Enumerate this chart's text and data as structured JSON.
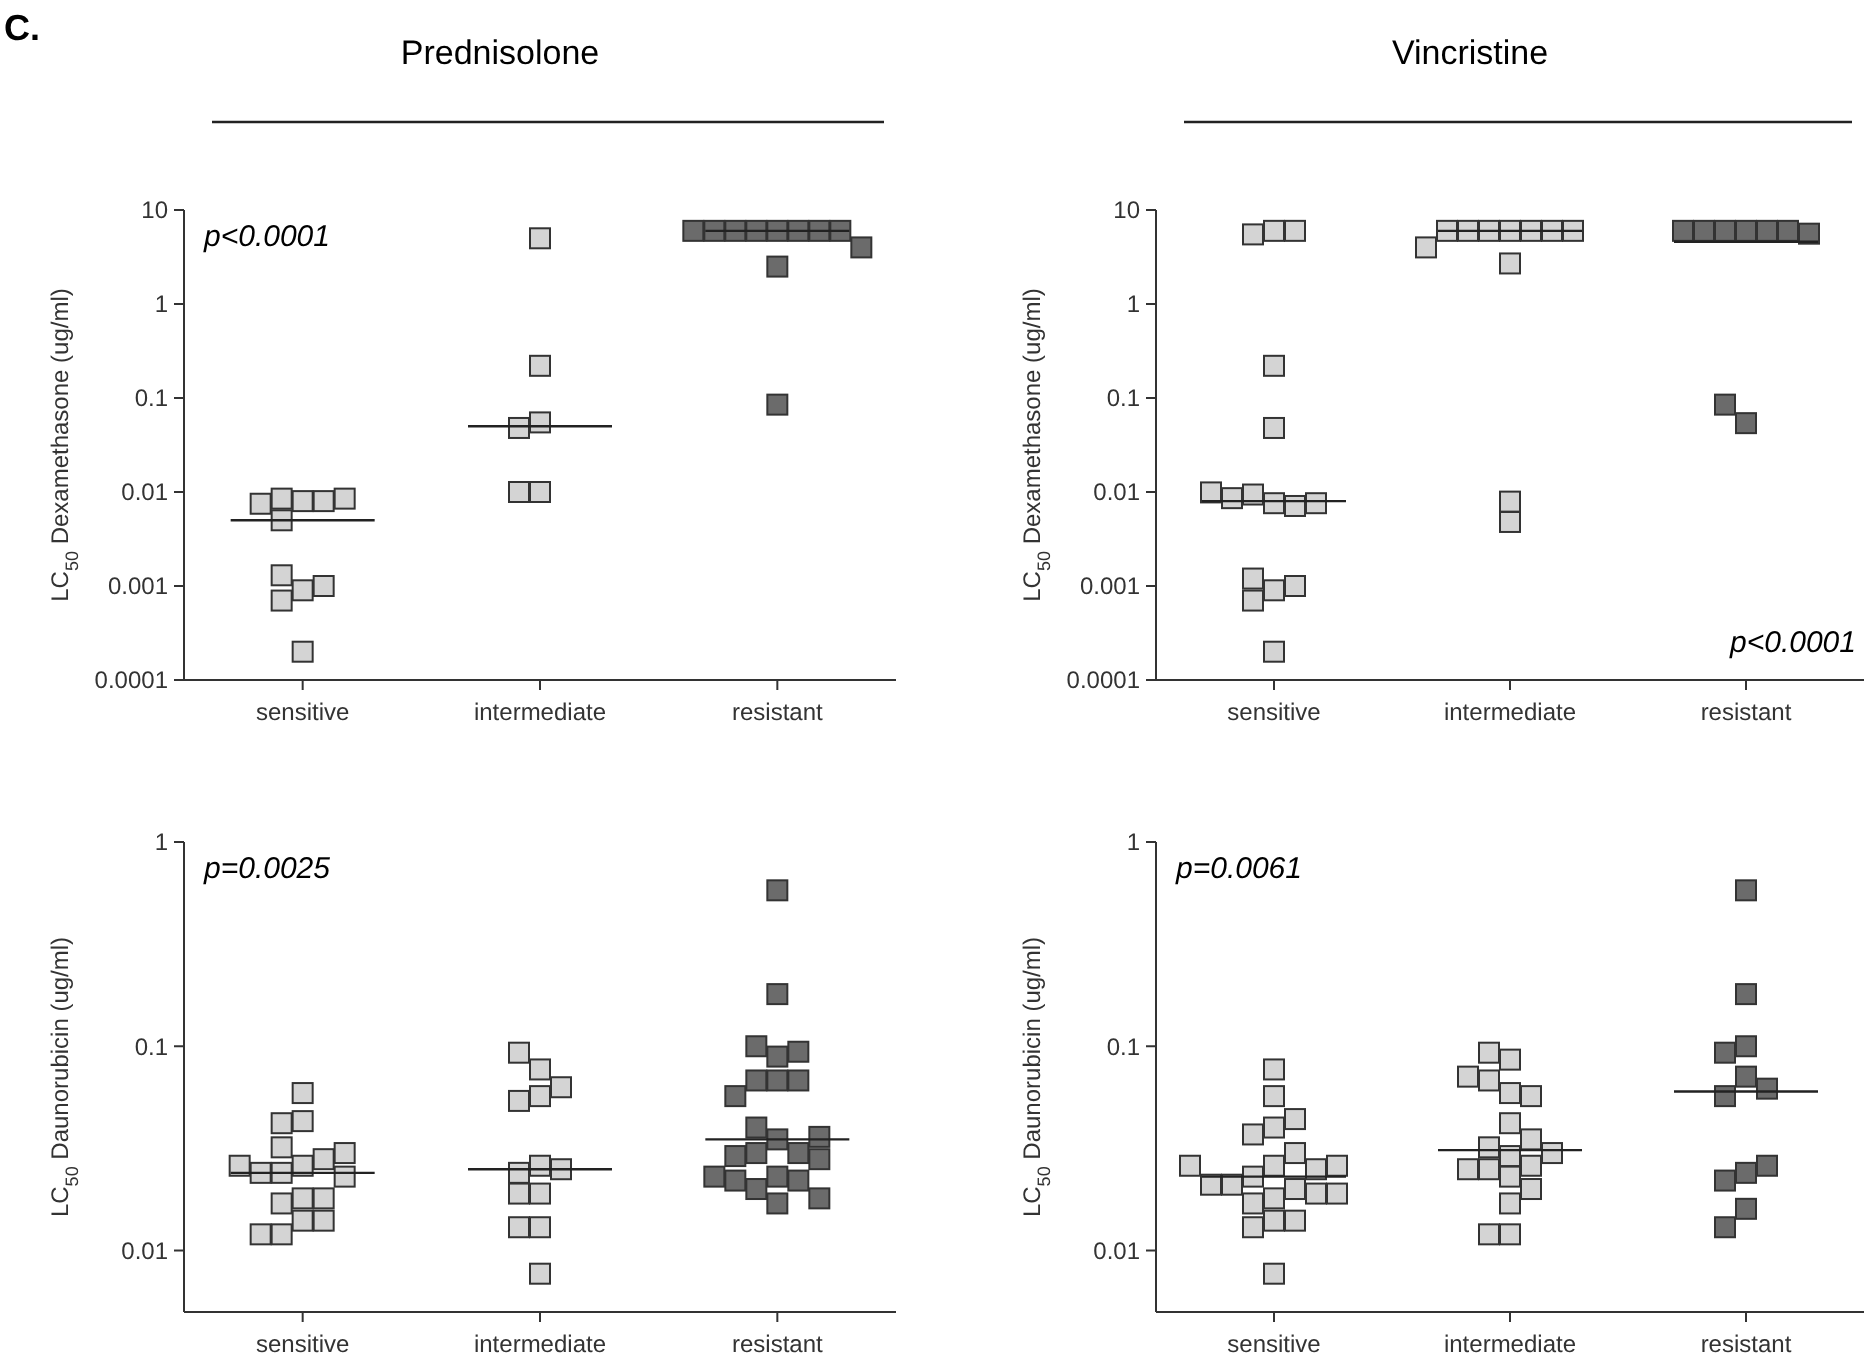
{
  "chart_data": [
    {
      "type": "scatter",
      "title": "Prednisolone",
      "ylabel": "LC$_{50}$ Dexamethasone (ug/ml)",
      "categories": [
        "sensitive",
        "intermediate",
        "resistant"
      ],
      "log": "y",
      "ylim": [
        0.0001,
        10
      ],
      "yticks": [
        0.0001,
        0.001,
        0.01,
        0.1,
        1,
        10
      ],
      "marker": "square",
      "annotations": [
        "C.",
        "p<0.0001"
      ],
      "series": [
        {
          "type": "scatter",
          "color": "#d4d4d4",
          "x": [
            "sensitive",
            "sensitive",
            "sensitive",
            "sensitive",
            "sensitive",
            "sensitive",
            "sensitive",
            "sensitive",
            "sensitive",
            "sensitive",
            "sensitive"
          ],
          "values": [
            0.008,
            0.0085,
            0.008,
            0.0075,
            0.0085,
            0.005,
            0.0009,
            0.0013,
            0.0007,
            0.001,
            0.0002
          ]
        },
        {
          "type": "scatter",
          "color": "#d4d4d4",
          "x": [
            "intermediate",
            "intermediate",
            "intermediate",
            "intermediate",
            "intermediate",
            "intermediate"
          ],
          "values": [
            5,
            0.22,
            0.055,
            0.048,
            0.01,
            0.01
          ]
        },
        {
          "type": "scatter",
          "color": "#6b6b6b",
          "x": [
            "resistant",
            "resistant",
            "resistant",
            "resistant",
            "resistant",
            "resistant",
            "resistant",
            "resistant",
            "resistant",
            "resistant",
            "resistant"
          ],
          "values": [
            6,
            6,
            6,
            6,
            6,
            6,
            6,
            6,
            4,
            2.5,
            0.085
          ]
        },
        {
          "type": "box",
          "color": "#222222",
          "boxes": [
            {
              "low": 0.005,
              "q1": 0.005,
              "median": 0.005,
              "q3": 0.005,
              "high": 0.005
            },
            {
              "low": 0.05,
              "q1": 0.05,
              "median": 0.05,
              "q3": 0.05,
              "high": 0.05
            },
            {
              "low": 6,
              "q1": 6,
              "median": 6,
              "q3": 6,
              "high": 6
            }
          ]
        }
      ]
    },
    {
      "type": "scatter",
      "title": "Vincristine",
      "ylabel": "LC$_{50}$ Dexamethasone (ug/ml)",
      "categories": [
        "sensitive",
        "intermediate",
        "resistant"
      ],
      "log": "y",
      "ylim": [
        0.0001,
        10
      ],
      "yticks": [
        0.0001,
        0.001,
        0.01,
        0.1,
        1,
        10
      ],
      "marker": "square",
      "annotations": [
        "p<0.0001"
      ],
      "series": [
        {
          "type": "scatter",
          "color": "#d4d4d4",
          "x": [
            "sensitive",
            "sensitive",
            "sensitive",
            "sensitive",
            "sensitive",
            "sensitive",
            "sensitive",
            "sensitive",
            "sensitive",
            "sensitive",
            "sensitive",
            "sensitive",
            "sensitive",
            "sensitive",
            "sensitive",
            "sensitive"
          ],
          "values": [
            6,
            5.5,
            6,
            0.22,
            0.048,
            0.0076,
            0.0094,
            0.0071,
            0.0086,
            0.0076,
            0.0099,
            0.0009,
            0.0012,
            0.0007,
            0.001,
            0.0002
          ]
        },
        {
          "type": "scatter",
          "color": "#d4d4d4",
          "x": [
            "intermediate",
            "intermediate",
            "intermediate",
            "intermediate",
            "intermediate",
            "intermediate",
            "intermediate",
            "intermediate",
            "intermediate",
            "intermediate",
            "intermediate"
          ],
          "values": [
            6,
            6,
            6,
            6,
            6,
            6,
            6,
            4,
            2.7,
            0.0048,
            0.0079
          ]
        },
        {
          "type": "scatter",
          "color": "#6b6b6b",
          "x": [
            "resistant",
            "resistant",
            "resistant",
            "resistant",
            "resistant",
            "resistant",
            "resistant",
            "resistant",
            "resistant"
          ],
          "values": [
            6,
            6,
            6,
            6,
            6,
            6,
            5.6,
            0.054,
            0.085
          ]
        },
        {
          "type": "box",
          "color": "#222222",
          "boxes": [
            {
              "low": 0.008,
              "q1": 0.008,
              "median": 0.008,
              "q3": 0.008,
              "high": 0.008
            },
            {
              "low": 6,
              "q1": 6,
              "median": 6,
              "q3": 6,
              "high": 6
            },
            {
              "low": 4.6,
              "q1": 4.6,
              "median": 4.6,
              "q3": 4.6,
              "high": 4.6
            }
          ]
        }
      ]
    },
    {
      "type": "scatter",
      "ylabel": "LC$_{50}$ Daunorubicin (ug/ml)",
      "categories": [
        "sensitive",
        "intermediate",
        "resistant"
      ],
      "log": "y",
      "ylim": [
        0.005,
        1
      ],
      "yticks": [
        0.01,
        0.1,
        1
      ],
      "marker": "square",
      "annotations": [
        "p=0.0025"
      ],
      "series": [
        {
          "type": "scatter",
          "color": "#d4d4d4",
          "x": [
            "sensitive",
            "sensitive",
            "sensitive",
            "sensitive",
            "sensitive",
            "sensitive",
            "sensitive",
            "sensitive",
            "sensitive",
            "sensitive",
            "sensitive",
            "sensitive",
            "sensitive",
            "sensitive",
            "sensitive",
            "sensitive",
            "sensitive",
            "sensitive"
          ],
          "values": [
            0.026,
            0.043,
            0.032,
            0.018,
            0.014,
            0.024,
            0.017,
            0.042,
            0.028,
            0.018,
            0.012,
            0.024,
            0.014,
            0.059,
            0.03,
            0.023,
            0.012,
            0.026
          ]
        },
        {
          "type": "scatter",
          "color": "#d4d4d4",
          "x": [
            "intermediate",
            "intermediate",
            "intermediate",
            "intermediate",
            "intermediate",
            "intermediate",
            "intermediate",
            "intermediate",
            "intermediate",
            "intermediate",
            "intermediate",
            "intermediate",
            "intermediate"
          ],
          "values": [
            0.057,
            0.026,
            0.013,
            0.077,
            0.019,
            0.093,
            0.054,
            0.024,
            0.013,
            0.0077,
            0.063,
            0.025,
            0.019
          ]
        },
        {
          "type": "scatter",
          "color": "#6b6b6b",
          "x": [
            "resistant",
            "resistant",
            "resistant",
            "resistant",
            "resistant",
            "resistant",
            "resistant",
            "resistant",
            "resistant",
            "resistant",
            "resistant",
            "resistant",
            "resistant",
            "resistant",
            "resistant",
            "resistant",
            "resistant",
            "resistant",
            "resistant",
            "resistant",
            "resistant",
            "resistant",
            "resistant"
          ],
          "values": [
            0.58,
            0.18,
            0.068,
            0.089,
            0.1,
            0.094,
            0.068,
            0.068,
            0.057,
            0.035,
            0.03,
            0.023,
            0.04,
            0.03,
            0.029,
            0.028,
            0.036,
            0.02,
            0.022,
            0.017,
            0.022,
            0.018,
            0.023
          ]
        },
        {
          "type": "box",
          "color": "#222222",
          "boxes": [
            {
              "low": 0.024,
              "q1": 0.024,
              "median": 0.024,
              "q3": 0.024,
              "high": 0.024
            },
            {
              "low": 0.025,
              "q1": 0.025,
              "median": 0.025,
              "q3": 0.025,
              "high": 0.025
            },
            {
              "low": 0.035,
              "q1": 0.035,
              "median": 0.035,
              "q3": 0.035,
              "high": 0.035
            }
          ]
        }
      ]
    },
    {
      "type": "scatter",
      "ylabel": "LC$_{50}$ Daunorubicin (ug/ml)",
      "categories": [
        "sensitive",
        "intermediate",
        "resistant"
      ],
      "log": "y",
      "ylim": [
        0.005,
        1
      ],
      "yticks": [
        0.01,
        0.1,
        1
      ],
      "marker": "square",
      "annotations": [
        "p=0.0061"
      ],
      "series": [
        {
          "type": "scatter",
          "color": "#d4d4d4",
          "x": [
            "sensitive",
            "sensitive",
            "sensitive",
            "sensitive",
            "sensitive",
            "sensitive",
            "sensitive",
            "sensitive",
            "sensitive",
            "sensitive",
            "sensitive",
            "sensitive",
            "sensitive",
            "sensitive",
            "sensitive",
            "sensitive",
            "sensitive",
            "sensitive",
            "sensitive",
            "sensitive",
            "sensitive",
            "sensitive"
          ],
          "values": [
            0.026,
            0.018,
            0.04,
            0.023,
            0.014,
            0.02,
            0.017,
            0.057,
            0.037,
            0.03,
            0.021,
            0.013,
            0.0077,
            0.025,
            0.019,
            0.077,
            0.044,
            0.021,
            0.014,
            0.026,
            0.019,
            0.026
          ]
        },
        {
          "type": "scatter",
          "color": "#d4d4d4",
          "x": [
            "intermediate",
            "intermediate",
            "intermediate",
            "intermediate",
            "intermediate",
            "intermediate",
            "intermediate",
            "intermediate",
            "intermediate",
            "intermediate",
            "intermediate",
            "intermediate",
            "intermediate",
            "intermediate",
            "intermediate",
            "intermediate",
            "intermediate",
            "intermediate",
            "intermediate"
          ],
          "values": [
            0.029,
            0.059,
            0.042,
            0.023,
            0.017,
            0.068,
            0.086,
            0.057,
            0.032,
            0.025,
            0.02,
            0.012,
            0.026,
            0.093,
            0.071,
            0.035,
            0.025,
            0.012,
            0.03
          ]
        },
        {
          "type": "scatter",
          "color": "#6b6b6b",
          "x": [
            "resistant",
            "resistant",
            "resistant",
            "resistant",
            "resistant",
            "resistant",
            "resistant",
            "resistant",
            "resistant",
            "resistant",
            "resistant",
            "resistant"
          ],
          "values": [
            0.58,
            0.18,
            0.1,
            0.093,
            0.071,
            0.057,
            0.062,
            0.024,
            0.022,
            0.026,
            0.016,
            0.013
          ]
        },
        {
          "type": "box",
          "color": "#222222",
          "boxes": [
            {
              "low": 0.023,
              "q1": 0.023,
              "median": 0.023,
              "q3": 0.023,
              "high": 0.023
            },
            {
              "low": 0.031,
              "q1": 0.031,
              "median": 0.031,
              "q3": 0.031,
              "high": 0.031
            },
            {
              "low": 0.06,
              "q1": 0.06,
              "median": 0.06,
              "q3": 0.06,
              "high": 0.06
            }
          ]
        }
      ]
    }
  ]
}
